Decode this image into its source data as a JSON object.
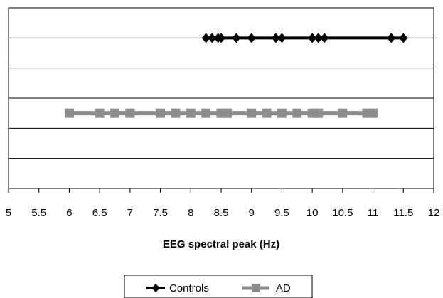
{
  "chart_data": {
    "type": "scatter",
    "title": "",
    "xlabel": "EEG spectral peak  (Hz)",
    "ylabel": "",
    "xlim": [
      5,
      12
    ],
    "xticks": [
      "5",
      "5.5",
      "6",
      "6.5",
      "7",
      "7.5",
      "8",
      "8.5",
      "9",
      "9.5",
      "10",
      "10.5",
      "11",
      "11.5",
      "12"
    ],
    "grid": "horizontal",
    "legend": "bottom-center",
    "series": [
      {
        "name": "Controls",
        "marker": "diamond",
        "color": "#000000",
        "y_level": 2,
        "x": [
          8.25,
          8.35,
          8.45,
          8.5,
          8.75,
          9.0,
          9.4,
          9.5,
          10.0,
          10.1,
          10.2,
          11.3,
          11.5
        ]
      },
      {
        "name": "AD",
        "marker": "square",
        "color": "#8c8c8c",
        "y_level": 5,
        "x": [
          6.0,
          6.5,
          6.75,
          7.0,
          7.5,
          7.75,
          8.0,
          8.25,
          8.5,
          8.6,
          9.0,
          9.25,
          9.5,
          9.75,
          10.0,
          10.1,
          10.5,
          10.9,
          11.0
        ]
      }
    ]
  }
}
